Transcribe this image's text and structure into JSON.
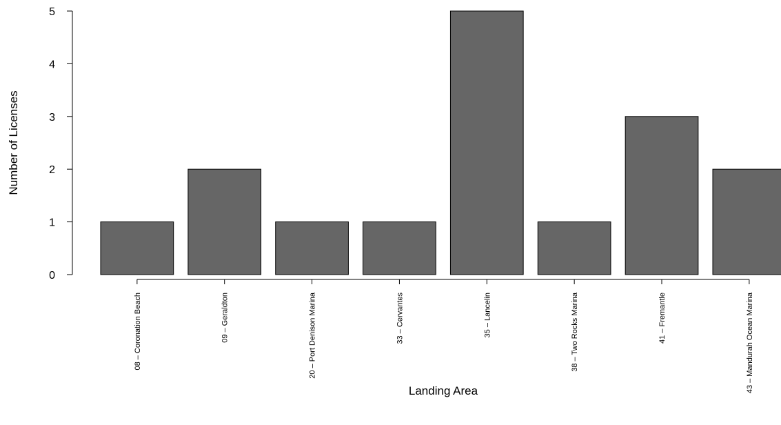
{
  "chart_data": {
    "type": "bar",
    "categories": [
      "08 – Coronation Beach",
      "09 – Geraldton",
      "20 – Port Denison Marina",
      "33 – Cervantes",
      "35 – Lancelin",
      "38 – Two Rocks Marina",
      "41 – Fremantle",
      "43 – Mandurah Ocean Marina"
    ],
    "values": [
      1,
      2,
      1,
      1,
      5,
      1,
      3,
      2
    ],
    "xlabel": "Landing Area",
    "ylabel": "Number of Licenses",
    "ylim": [
      0,
      5
    ],
    "yticks": [
      "0",
      "1",
      "2",
      "3",
      "4",
      "5"
    ],
    "grid": false,
    "bar_color": "#666666"
  }
}
